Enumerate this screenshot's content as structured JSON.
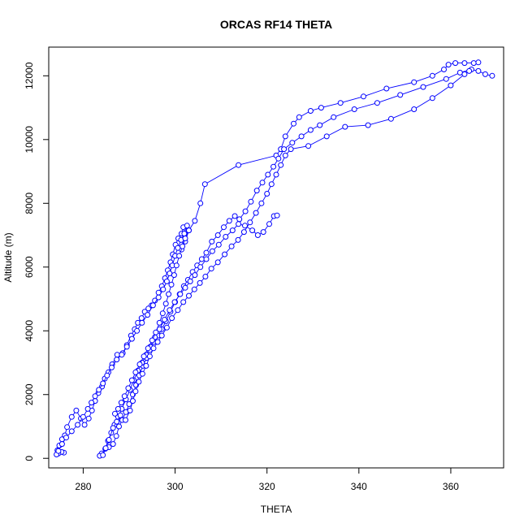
{
  "chart_data": {
    "type": "scatter",
    "title": "ORCAS RF14 THETA",
    "xlabel": "THETA",
    "ylabel": "Altitude (m)",
    "xlim": [
      272.5,
      371.5
    ],
    "ylim": [
      -300,
      12900
    ],
    "xticks": [
      280,
      300,
      320,
      340,
      360
    ],
    "yticks": [
      0,
      2000,
      4000,
      6000,
      8000,
      10000,
      12000
    ],
    "series_color": "#0000ff",
    "grid": false,
    "series": [
      {
        "name": "",
        "points": [
          [
            275.8,
            180
          ],
          [
            275.3,
            200
          ],
          [
            274.6,
            150
          ],
          [
            274.4,
            250
          ],
          [
            274.8,
            400
          ],
          [
            275.4,
            600
          ],
          [
            276.0,
            720
          ],
          [
            276.5,
            980
          ],
          [
            277.5,
            1300
          ],
          [
            278.5,
            1500
          ],
          [
            279.5,
            1250
          ],
          [
            280.3,
            1050
          ],
          [
            281.2,
            1250
          ],
          [
            281.9,
            1500
          ],
          [
            282.6,
            1800
          ],
          [
            283.3,
            2050
          ],
          [
            284.1,
            2250
          ],
          [
            284.7,
            2500
          ],
          [
            285.5,
            2700
          ],
          [
            286.3,
            2950
          ],
          [
            287.4,
            3250
          ],
          [
            288.6,
            3300
          ],
          [
            289.5,
            3550
          ],
          [
            290.4,
            3850
          ],
          [
            291.2,
            4050
          ],
          [
            291.9,
            4250
          ],
          [
            292.7,
            4400
          ],
          [
            293.4,
            4600
          ],
          [
            294.2,
            4700
          ],
          [
            294.9,
            4800
          ],
          [
            295.6,
            4950
          ],
          [
            296.4,
            5200
          ],
          [
            297.1,
            5400
          ],
          [
            297.8,
            5650
          ],
          [
            298.4,
            5900
          ],
          [
            299.0,
            6150
          ],
          [
            299.5,
            6400
          ],
          [
            300.1,
            6700
          ],
          [
            300.7,
            6900
          ],
          [
            301.4,
            7050
          ],
          [
            301.8,
            7250
          ],
          [
            302.5,
            7150
          ],
          [
            301.8,
            6850
          ],
          [
            301.4,
            6550
          ],
          [
            302.2,
            6800
          ],
          [
            303.0,
            7150
          ],
          [
            304.3,
            7450
          ],
          [
            305.5,
            8000
          ],
          [
            306.5,
            8600
          ],
          [
            313.8,
            9200
          ],
          [
            322.0,
            9500
          ],
          [
            323.0,
            9700
          ],
          [
            324.0,
            10100
          ],
          [
            325.8,
            10500
          ],
          [
            327.0,
            10700
          ],
          [
            329.5,
            10900
          ],
          [
            331.8,
            11000
          ],
          [
            336.0,
            11150
          ],
          [
            341.0,
            11350
          ],
          [
            346.0,
            11600
          ],
          [
            352.0,
            11800
          ],
          [
            356.0,
            12000
          ],
          [
            358.5,
            12200
          ],
          [
            359.5,
            12350
          ],
          [
            361.0,
            12400
          ],
          [
            363.0,
            12400
          ],
          [
            365.0,
            12400
          ],
          [
            366.0,
            12420
          ]
        ]
      },
      {
        "name": "",
        "points": [
          [
            285.6,
            350
          ],
          [
            286.5,
            450
          ],
          [
            287.2,
            700
          ],
          [
            287.8,
            1000
          ],
          [
            288.5,
            1200
          ],
          [
            289.3,
            1450
          ],
          [
            290.0,
            1700
          ],
          [
            290.8,
            2000
          ],
          [
            291.5,
            2300
          ],
          [
            292.2,
            2600
          ],
          [
            293.0,
            2900
          ],
          [
            293.8,
            3150
          ],
          [
            294.5,
            3400
          ],
          [
            295.4,
            3650
          ],
          [
            296.3,
            3850
          ],
          [
            297.1,
            4050
          ],
          [
            298.0,
            4300
          ],
          [
            299.0,
            4600
          ],
          [
            300.0,
            4900
          ],
          [
            301.0,
            5150
          ],
          [
            301.9,
            5400
          ],
          [
            302.8,
            5600
          ],
          [
            303.8,
            5850
          ],
          [
            304.8,
            6050
          ],
          [
            305.8,
            6250
          ],
          [
            306.8,
            6450
          ],
          [
            308.0,
            6800
          ],
          [
            309.3,
            7000
          ],
          [
            310.6,
            7250
          ],
          [
            311.8,
            7450
          ],
          [
            313.0,
            7600
          ],
          [
            314.0,
            7500
          ],
          [
            315.3,
            7750
          ],
          [
            316.5,
            8050
          ],
          [
            317.8,
            8400
          ],
          [
            319.0,
            8650
          ],
          [
            320.2,
            8900
          ],
          [
            321.4,
            9150
          ],
          [
            322.5,
            9400
          ],
          [
            323.7,
            9700
          ],
          [
            325.5,
            9900
          ],
          [
            327.5,
            10100
          ],
          [
            329.5,
            10300
          ],
          [
            331.5,
            10450
          ],
          [
            334.5,
            10700
          ],
          [
            339.0,
            10950
          ],
          [
            344.0,
            11150
          ],
          [
            349.0,
            11400
          ],
          [
            354.0,
            11650
          ],
          [
            359.0,
            11900
          ],
          [
            362.0,
            12100
          ],
          [
            364.5,
            12200
          ],
          [
            366.0,
            12150
          ],
          [
            367.5,
            12050
          ],
          [
            369.0,
            12000
          ]
        ]
      },
      {
        "name": "",
        "points": [
          [
            284.0,
            150
          ],
          [
            284.8,
            300
          ],
          [
            285.4,
            550
          ],
          [
            286.1,
            800
          ],
          [
            286.8,
            1050
          ],
          [
            287.6,
            1300
          ],
          [
            288.4,
            1550
          ],
          [
            289.3,
            1850
          ],
          [
            290.2,
            2150
          ],
          [
            291.0,
            2450
          ],
          [
            291.9,
            2750
          ],
          [
            292.8,
            3000
          ],
          [
            293.7,
            3250
          ],
          [
            294.6,
            3500
          ],
          [
            295.6,
            3800
          ],
          [
            296.6,
            4050
          ],
          [
            297.7,
            4350
          ],
          [
            298.8,
            4650
          ],
          [
            299.9,
            4900
          ],
          [
            301.1,
            5150
          ],
          [
            302.2,
            5350
          ],
          [
            303.3,
            5550
          ],
          [
            304.3,
            5750
          ],
          [
            305.5,
            6000
          ],
          [
            306.8,
            6250
          ],
          [
            308.1,
            6500
          ],
          [
            309.5,
            6700
          ],
          [
            311.0,
            6950
          ],
          [
            312.5,
            7150
          ],
          [
            313.8,
            7350
          ],
          [
            315.2,
            7300
          ],
          [
            316.8,
            7150
          ],
          [
            318.0,
            7000
          ],
          [
            319.2,
            7100
          ],
          [
            320.5,
            7350
          ],
          [
            321.5,
            7600
          ],
          [
            322.2,
            7620
          ]
        ]
      },
      {
        "name": "",
        "points": [
          [
            283.6,
            80
          ],
          [
            284.3,
            100
          ],
          [
            284.9,
            320
          ],
          [
            285.6,
            580
          ],
          [
            286.5,
            950
          ],
          [
            287.3,
            1150
          ],
          [
            288.1,
            1350
          ],
          [
            289.2,
            1200
          ],
          [
            290.2,
            1500
          ],
          [
            290.8,
            1800
          ],
          [
            291.4,
            2100
          ],
          [
            292.1,
            2400
          ],
          [
            292.9,
            2650
          ],
          [
            293.7,
            2900
          ],
          [
            294.5,
            3200
          ],
          [
            295.3,
            3450
          ],
          [
            296.2,
            3650
          ],
          [
            297.1,
            3850
          ],
          [
            298.2,
            4100
          ],
          [
            299.3,
            4400
          ],
          [
            300.6,
            4650
          ],
          [
            301.8,
            4900
          ],
          [
            303.0,
            5100
          ],
          [
            304.2,
            5300
          ],
          [
            305.4,
            5500
          ],
          [
            306.6,
            5700
          ],
          [
            307.9,
            5950
          ],
          [
            309.3,
            6150
          ],
          [
            310.8,
            6400
          ],
          [
            312.3,
            6650
          ],
          [
            313.7,
            6850
          ],
          [
            315.0,
            7100
          ],
          [
            316.3,
            7400
          ],
          [
            317.6,
            7700
          ],
          [
            318.8,
            8000
          ],
          [
            320.0,
            8300
          ],
          [
            321.0,
            8600
          ],
          [
            322.0,
            8900
          ],
          [
            323.0,
            9200
          ],
          [
            324.0,
            9500
          ],
          [
            325.2,
            9700
          ],
          [
            329.0,
            9800
          ],
          [
            333.0,
            10100
          ],
          [
            337.0,
            10400
          ],
          [
            342.0,
            10450
          ],
          [
            347.0,
            10650
          ],
          [
            352.0,
            10950
          ],
          [
            356.0,
            11300
          ],
          [
            360.0,
            11700
          ],
          [
            363.0,
            12050
          ],
          [
            364.0,
            12150
          ]
        ]
      },
      {
        "name": "",
        "points": [
          [
            274.2,
            120
          ],
          [
            274.6,
            230
          ],
          [
            275.4,
            450
          ],
          [
            276.3,
            650
          ],
          [
            277.5,
            850
          ],
          [
            278.8,
            1050
          ],
          [
            280.0,
            1300
          ],
          [
            281.0,
            1550
          ],
          [
            281.8,
            1750
          ],
          [
            282.6,
            1950
          ],
          [
            283.4,
            2150
          ],
          [
            284.3,
            2350
          ],
          [
            285.2,
            2600
          ],
          [
            286.2,
            2850
          ],
          [
            287.3,
            3100
          ],
          [
            288.4,
            3250
          ],
          [
            289.5,
            3500
          ],
          [
            290.6,
            3750
          ],
          [
            291.7,
            4000
          ],
          [
            292.8,
            4250
          ],
          [
            294.0,
            4500
          ],
          [
            295.2,
            4800
          ],
          [
            296.4,
            5050
          ],
          [
            297.4,
            5300
          ],
          [
            298.2,
            5550
          ],
          [
            298.8,
            5800
          ],
          [
            299.4,
            6050
          ],
          [
            300.0,
            6350
          ],
          [
            300.6,
            6600
          ],
          [
            301.3,
            6850
          ],
          [
            302.0,
            7050
          ],
          [
            302.6,
            7300
          ],
          [
            303.0,
            7150
          ],
          [
            302.2,
            6900
          ],
          [
            301.6,
            6650
          ],
          [
            300.9,
            6350
          ],
          [
            300.3,
            6050
          ],
          [
            299.8,
            5750
          ],
          [
            299.2,
            5450
          ],
          [
            298.6,
            5150
          ],
          [
            298.0,
            4850
          ],
          [
            297.3,
            4550
          ],
          [
            296.6,
            4250
          ],
          [
            295.8,
            3950
          ],
          [
            295.0,
            3700
          ],
          [
            294.1,
            3450
          ],
          [
            293.2,
            3200
          ],
          [
            292.3,
            2950
          ],
          [
            291.4,
            2700
          ],
          [
            290.6,
            2450
          ],
          [
            289.8,
            2200
          ],
          [
            289.0,
            1950
          ],
          [
            288.3,
            1750
          ],
          [
            287.6,
            1550
          ],
          [
            286.9,
            1400
          ]
        ]
      }
    ]
  }
}
